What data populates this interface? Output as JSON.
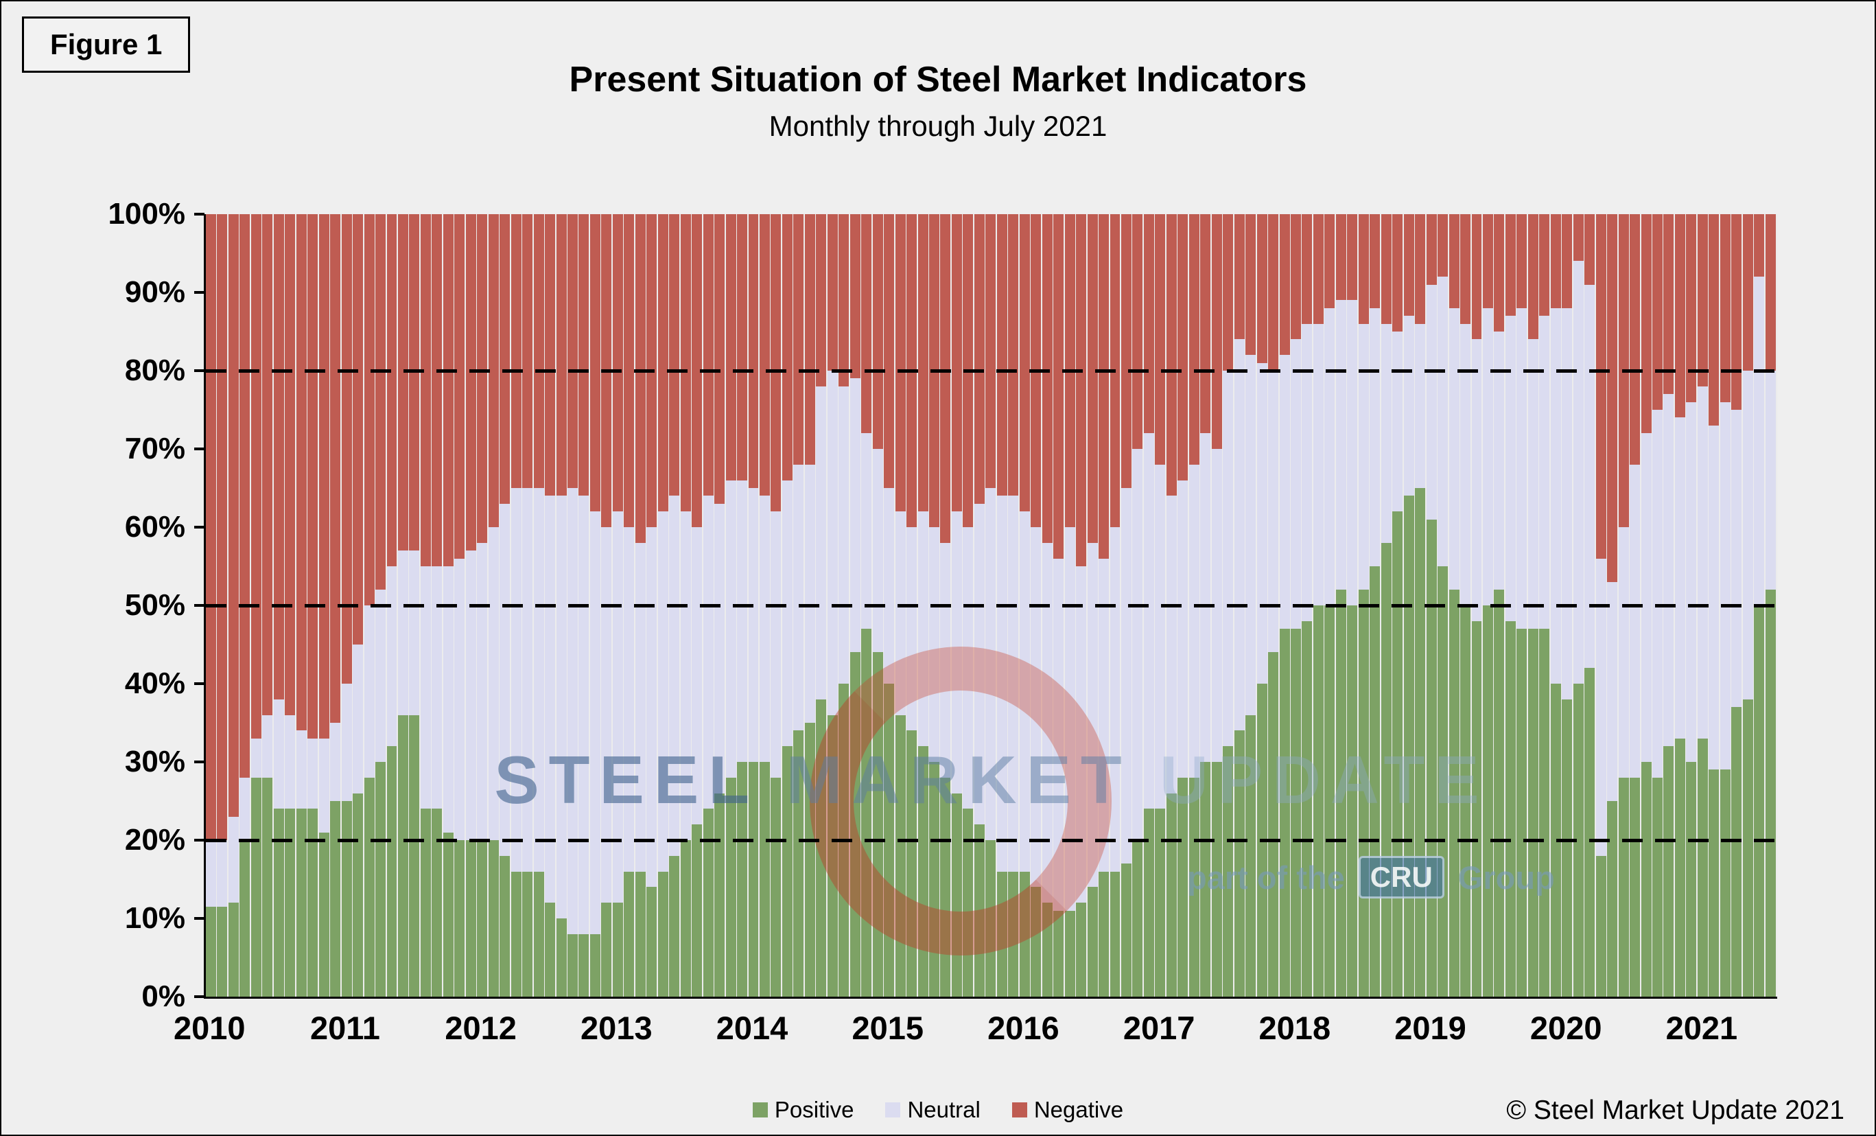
{
  "figure_label": "Figure 1",
  "title": "Present Situation of Steel Market Indicators",
  "subtitle": "Monthly through July 2021",
  "copyright": "© Steel Market Update 2021",
  "watermark": {
    "word1": "STEEL",
    "word2": "MARKET",
    "word3": "UPDATE",
    "line2": "part of the",
    "cru": "CRU",
    "group": "Group"
  },
  "legend": [
    {
      "label": "Positive",
      "color": "#7da265"
    },
    {
      "label": "Neutral",
      "color": "#dbdcf0"
    },
    {
      "label": "Negative",
      "color": "#bf5c52"
    }
  ],
  "chart_data": {
    "type": "bar",
    "stacked": true,
    "percent": true,
    "title": "Present Situation of Steel Market Indicators",
    "subtitle": "Monthly through July 2021",
    "x_start": "2010-01",
    "x_end": "2021-07",
    "months_count": 139,
    "year_labels": [
      "2010",
      "2011",
      "2012",
      "2013",
      "2014",
      "2015",
      "2016",
      "2017",
      "2018",
      "2019",
      "2020",
      "2021"
    ],
    "y_ticks": [
      "0%",
      "10%",
      "20%",
      "30%",
      "40%",
      "50%",
      "60%",
      "70%",
      "80%",
      "90%",
      "100%"
    ],
    "ylim": [
      0,
      100
    ],
    "dashed_gridlines_pct": [
      20,
      50,
      80
    ],
    "legend_position": "bottom",
    "grid": "off",
    "series": [
      {
        "name": "Positive",
        "color": "#7da265",
        "values": [
          11.5,
          11.5,
          12,
          20,
          28,
          28,
          24,
          24,
          24,
          24,
          21,
          25,
          25,
          26,
          28,
          30,
          32,
          36,
          36,
          24,
          24,
          21,
          20,
          20,
          20,
          20,
          18,
          16,
          16,
          16,
          12,
          10,
          8,
          8,
          8,
          12,
          12,
          16,
          16,
          14,
          16,
          18,
          20,
          22,
          24,
          26,
          28,
          30,
          30,
          30,
          28,
          32,
          34,
          35,
          38,
          36,
          40,
          44,
          47,
          44,
          40,
          36,
          34,
          32,
          30,
          28,
          26,
          24,
          22,
          20,
          16,
          16,
          16,
          14,
          12,
          11,
          11,
          12,
          14,
          16,
          16,
          17,
          20,
          24,
          24,
          26,
          28,
          28,
          30,
          30,
          32,
          34,
          36,
          40,
          44,
          47,
          47,
          48,
          50,
          50,
          52,
          50,
          52,
          55,
          58,
          62,
          64,
          65,
          61,
          55,
          52,
          50,
          48,
          50,
          52,
          48,
          47,
          47,
          47,
          40,
          38,
          40,
          42,
          18,
          25,
          28,
          28,
          30,
          28,
          32,
          33,
          30,
          33,
          29,
          29,
          37,
          38,
          50,
          52
        ]
      },
      {
        "name": "Neutral",
        "color": "#dbdcf0",
        "values": [
          8.5,
          8.5,
          11,
          8,
          5,
          8,
          14,
          12,
          10,
          9,
          12,
          10,
          15,
          19,
          22,
          22,
          23,
          21,
          21,
          31,
          31,
          34,
          36,
          37,
          38,
          40,
          45,
          49,
          49,
          49,
          52,
          54,
          57,
          56,
          54,
          48,
          50,
          44,
          42,
          46,
          46,
          46,
          42,
          38,
          40,
          37,
          38,
          36,
          35,
          34,
          34,
          34,
          34,
          33,
          40,
          44,
          38,
          35,
          25,
          26,
          25,
          26,
          26,
          30,
          30,
          30,
          36,
          36,
          41,
          45,
          48,
          48,
          46,
          46,
          46,
          45,
          49,
          43,
          44,
          40,
          44,
          48,
          50,
          48,
          44,
          38,
          38,
          40,
          42,
          40,
          48,
          50,
          46,
          41,
          36,
          35,
          37,
          38,
          36,
          38,
          37,
          39,
          34,
          33,
          28,
          23,
          23,
          21,
          30,
          37,
          36,
          36,
          36,
          38,
          33,
          39,
          41,
          37,
          40,
          48,
          50,
          54,
          49,
          38,
          28,
          32,
          40,
          42,
          47,
          45,
          41,
          46,
          45,
          44,
          47,
          38,
          42,
          42,
          28
        ]
      },
      {
        "name": "Negative",
        "color": "#bf5c52",
        "values": [
          80,
          80,
          77,
          72,
          67,
          64,
          62,
          64,
          66,
          67,
          67,
          65,
          60,
          55,
          50,
          48,
          45,
          43,
          43,
          45,
          45,
          45,
          44,
          43,
          42,
          40,
          37,
          35,
          35,
          35,
          36,
          36,
          35,
          36,
          38,
          40,
          38,
          40,
          42,
          40,
          38,
          36,
          38,
          40,
          36,
          37,
          34,
          34,
          35,
          36,
          38,
          34,
          32,
          32,
          22,
          20,
          22,
          21,
          28,
          30,
          35,
          38,
          40,
          38,
          40,
          42,
          38,
          40,
          37,
          35,
          36,
          36,
          38,
          40,
          42,
          44,
          40,
          45,
          42,
          44,
          40,
          35,
          30,
          28,
          32,
          36,
          34,
          32,
          28,
          30,
          20,
          16,
          18,
          19,
          20,
          18,
          16,
          14,
          14,
          12,
          11,
          11,
          14,
          12,
          14,
          15,
          13,
          14,
          9,
          8,
          12,
          14,
          16,
          12,
          15,
          13,
          12,
          16,
          13,
          12,
          12,
          6,
          9,
          44,
          47,
          40,
          32,
          28,
          25,
          23,
          26,
          24,
          22,
          27,
          24,
          25,
          20,
          8,
          20
        ]
      }
    ]
  }
}
